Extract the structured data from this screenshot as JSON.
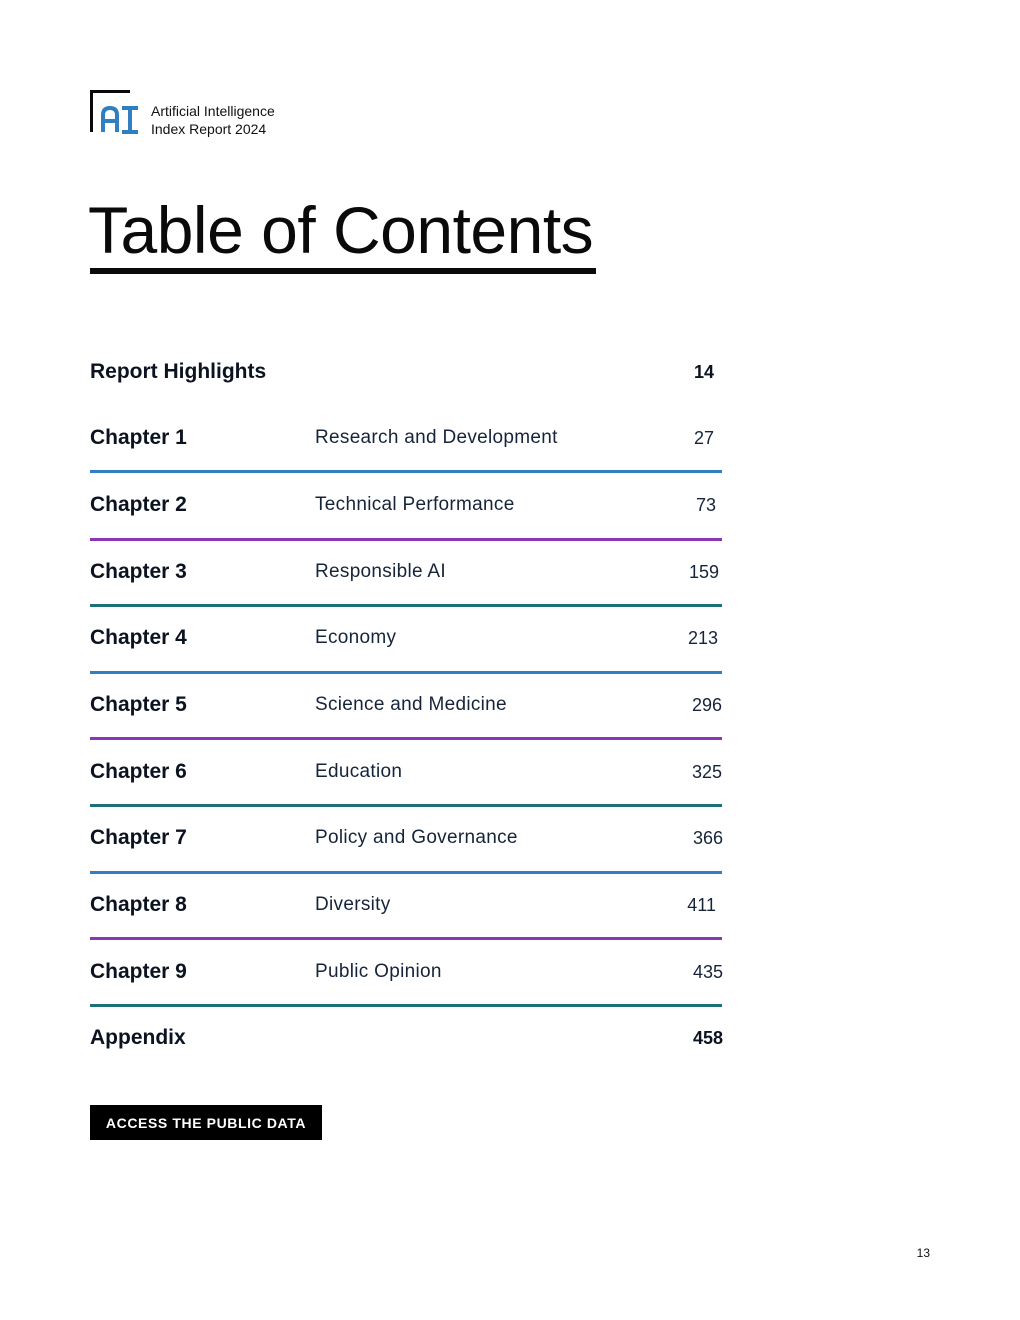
{
  "header": {
    "line1": "Artificial Intelligence",
    "line2": "Index Report 2024",
    "logo_icon": "ai-index-logo-icon",
    "logo_text": "AI"
  },
  "title": "Table of Contents",
  "toc": {
    "highlights": {
      "label": "Report Highlights",
      "page": "14"
    },
    "chapters": [
      {
        "label": "Chapter 1",
        "topic": "Research and Development",
        "page": "27"
      },
      {
        "label": "Chapter 2",
        "topic": "Technical Performance",
        "page": "73"
      },
      {
        "label": "Chapter 3",
        "topic": "Responsible AI",
        "page": "159"
      },
      {
        "label": "Chapter 4",
        "topic": "Economy",
        "page": "213"
      },
      {
        "label": "Chapter 5",
        "topic": "Science and Medicine",
        "page": "296"
      },
      {
        "label": "Chapter 6",
        "topic": "Education",
        "page": "325"
      },
      {
        "label": "Chapter 7",
        "topic": "Policy and Governance",
        "page": "366"
      },
      {
        "label": "Chapter 8",
        "topic": "Diversity",
        "page": "411"
      },
      {
        "label": "Chapter 9",
        "topic": "Public Opinion",
        "page": "435"
      }
    ],
    "appendix": {
      "label": "Appendix",
      "page": "458"
    }
  },
  "colors": {
    "blue": "#2f7fc1",
    "purple": "#8a37b6",
    "teal": "#1f6f78",
    "text": "#0b1320"
  },
  "button": {
    "label": "ACCESS THE PUBLIC DATA"
  },
  "page_number": "13"
}
